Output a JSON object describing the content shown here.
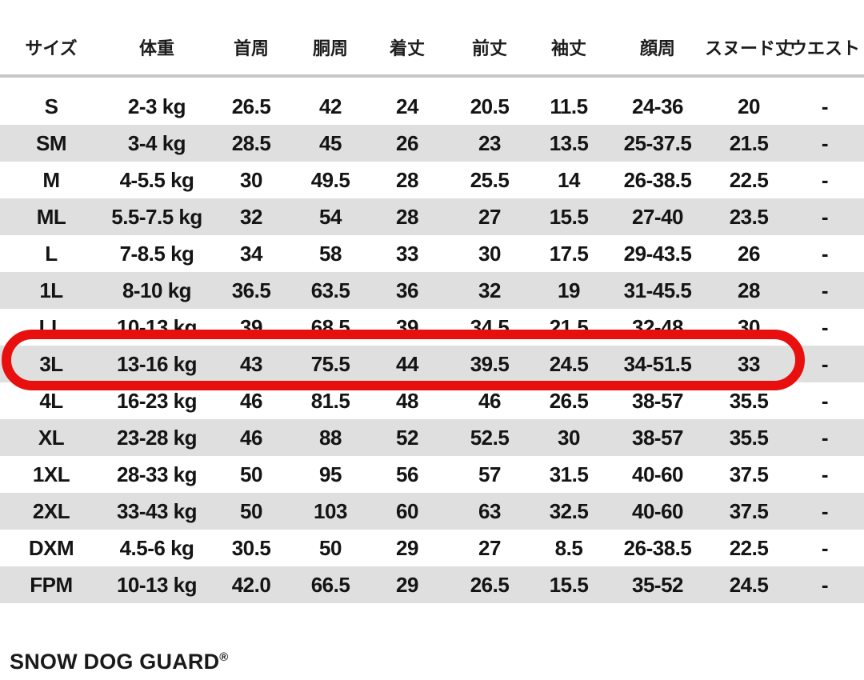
{
  "table": {
    "headers": [
      "サイズ",
      "体重",
      "首周",
      "胴周",
      "着丈",
      "前丈",
      "袖丈",
      "顔周",
      "スヌード丈",
      "ウエスト"
    ],
    "rows": [
      [
        "S",
        "2-3 kg",
        "26.5",
        "42",
        "24",
        "20.5",
        "11.5",
        "24-36",
        "20",
        "-"
      ],
      [
        "SM",
        "3-4 kg",
        "28.5",
        "45",
        "26",
        "23",
        "13.5",
        "25-37.5",
        "21.5",
        "-"
      ],
      [
        "M",
        "4-5.5 kg",
        "30",
        "49.5",
        "28",
        "25.5",
        "14",
        "26-38.5",
        "22.5",
        "-"
      ],
      [
        "ML",
        "5.5-7.5 kg",
        "32",
        "54",
        "28",
        "27",
        "15.5",
        "27-40",
        "23.5",
        "-"
      ],
      [
        "L",
        "7-8.5 kg",
        "34",
        "58",
        "33",
        "30",
        "17.5",
        "29-43.5",
        "26",
        "-"
      ],
      [
        "1L",
        "8-10 kg",
        "36.5",
        "63.5",
        "36",
        "32",
        "19",
        "31-45.5",
        "28",
        "-"
      ],
      [
        "LL",
        "10-13 kg",
        "39",
        "68.5",
        "39",
        "34.5",
        "21.5",
        "32-48",
        "30",
        "-"
      ],
      [
        "3L",
        "13-16 kg",
        "43",
        "75.5",
        "44",
        "39.5",
        "24.5",
        "34-51.5",
        "33",
        "-"
      ],
      [
        "4L",
        "16-23 kg",
        "46",
        "81.5",
        "48",
        "46",
        "26.5",
        "38-57",
        "35.5",
        "-"
      ],
      [
        "XL",
        "23-28 kg",
        "46",
        "88",
        "52",
        "52.5",
        "30",
        "38-57",
        "35.5",
        "-"
      ],
      [
        "1XL",
        "28-33 kg",
        "50",
        "95",
        "56",
        "57",
        "31.5",
        "40-60",
        "37.5",
        "-"
      ],
      [
        "2XL",
        "33-43 kg",
        "50",
        "103",
        "60",
        "63",
        "32.5",
        "40-60",
        "37.5",
        "-"
      ],
      [
        "DXM",
        "4.5-6 kg",
        "30.5",
        "50",
        "29",
        "27",
        "8.5",
        "26-38.5",
        "22.5",
        "-"
      ],
      [
        "FPM",
        "10-13 kg",
        "42.0",
        "66.5",
        "29",
        "26.5",
        "15.5",
        "35-52",
        "24.5",
        "-"
      ]
    ]
  },
  "highlight": {
    "row_label": "3L",
    "color": "#e8100e"
  },
  "colors": {
    "stripe": "#dfdfdf",
    "divider": "#c7c7c7",
    "text": "#141414"
  },
  "footer": {
    "brand": "SNOW DOG GUARD",
    "registered_mark": "®"
  }
}
